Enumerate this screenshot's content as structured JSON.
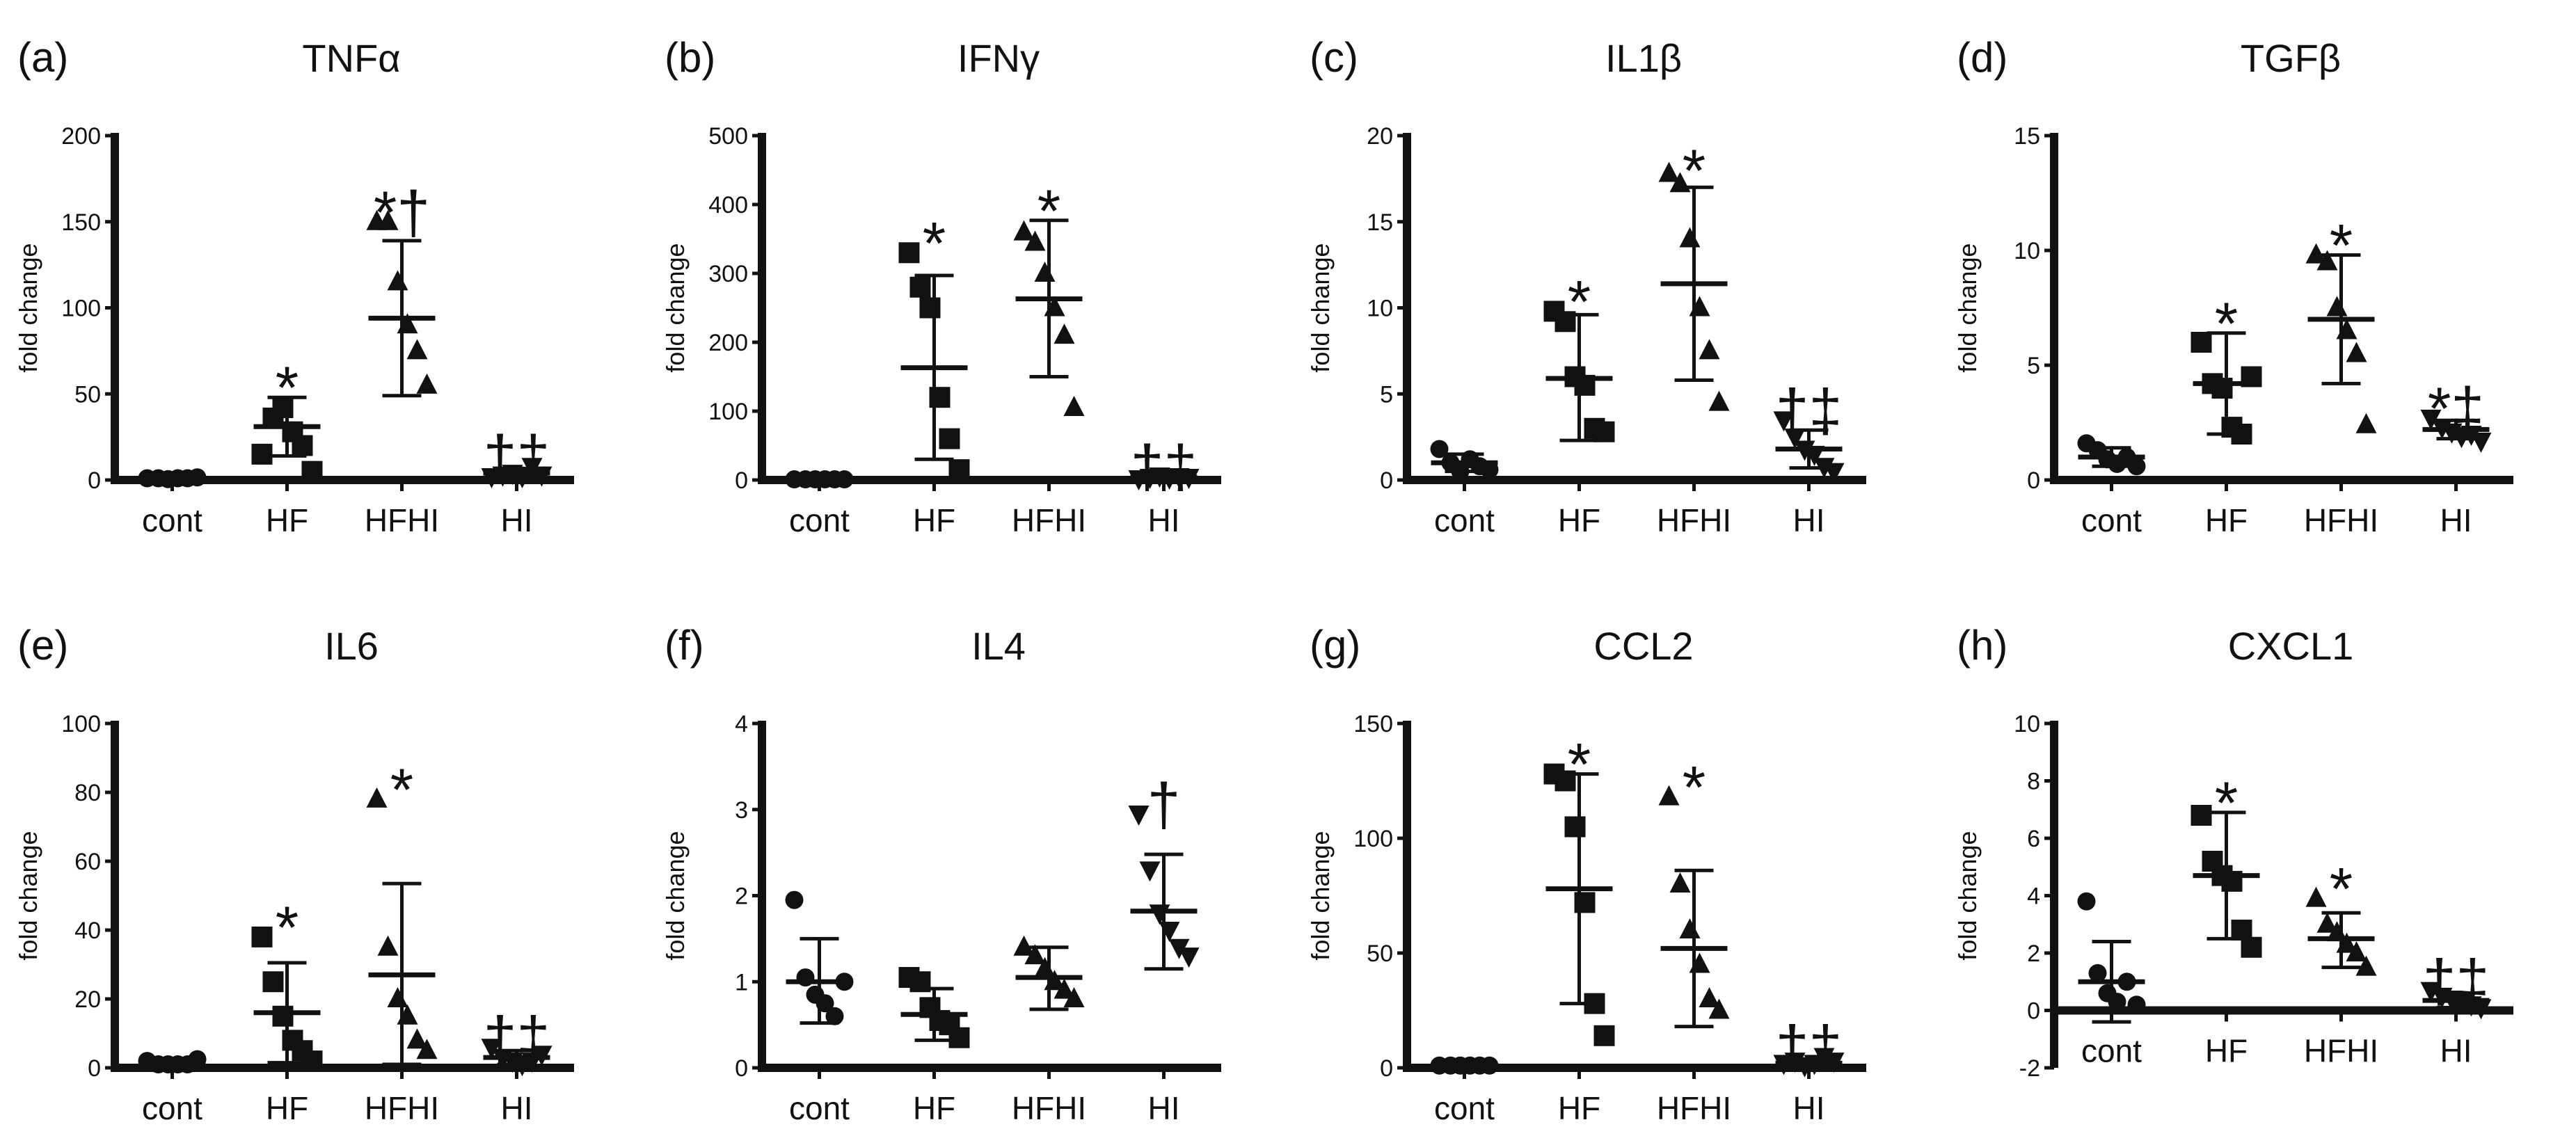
{
  "colors": {
    "ink": "#111111",
    "background": "#ffffff"
  },
  "y_axis_label": "fold change",
  "chart_data": [
    {
      "panel": "(a)",
      "type": "scatter",
      "title": "TNFα",
      "ylabel": "fold change",
      "categories": [
        "cont",
        "HF",
        "HFHI",
        "HI"
      ],
      "ylim": [
        0,
        200
      ],
      "yticks": [
        0,
        50,
        100,
        150,
        200
      ],
      "ytick_labels": [
        "0",
        "50",
        "100",
        "150",
        "200"
      ],
      "points": [
        [
          1,
          1,
          0.5,
          1,
          1,
          1.5
        ],
        [
          15,
          36,
          42,
          28,
          20,
          5
        ],
        [
          150,
          150,
          115,
          90,
          75,
          55
        ],
        [
          2,
          3,
          4,
          2,
          8,
          3
        ]
      ],
      "markers": [
        "circle",
        "square",
        "triangle-up",
        "triangle-down"
      ],
      "means": [
        1,
        31,
        94,
        4
      ],
      "sd_low": [
        1,
        14,
        49,
        2
      ],
      "sd_high": [
        1,
        48,
        139,
        6
      ],
      "annotations": [
        "",
        "*",
        "*†",
        "†‡"
      ]
    },
    {
      "panel": "(b)",
      "type": "scatter",
      "title": "IFNγ",
      "ylabel": "fold change",
      "categories": [
        "cont",
        "HF",
        "HFHI",
        "HI"
      ],
      "ylim": [
        0,
        500
      ],
      "yticks": [
        0,
        100,
        200,
        300,
        400,
        500
      ],
      "ytick_labels": [
        "0",
        "100",
        "200",
        "300",
        "400",
        "500"
      ],
      "points": [
        [
          1,
          1,
          1,
          1,
          1,
          1
        ],
        [
          330,
          280,
          250,
          120,
          60,
          15
        ],
        [
          360,
          345,
          300,
          250,
          210,
          105
        ],
        [
          2,
          4,
          6,
          3,
          5,
          4
        ]
      ],
      "markers": [
        "circle",
        "square",
        "triangle-up",
        "triangle-down"
      ],
      "means": [
        1,
        163,
        263,
        4
      ],
      "sd_low": [
        1,
        30,
        150,
        2
      ],
      "sd_high": [
        1,
        297,
        377,
        6
      ],
      "annotations": [
        "",
        "*",
        "*",
        "†‡"
      ]
    },
    {
      "panel": "(c)",
      "type": "scatter",
      "title": "IL1β",
      "ylabel": "fold change",
      "categories": [
        "cont",
        "HF",
        "HFHI",
        "HI"
      ],
      "ylim": [
        0,
        20
      ],
      "yticks": [
        0,
        5,
        10,
        15,
        20
      ],
      "ytick_labels": [
        "0",
        "5",
        "10",
        "15",
        "20"
      ],
      "points": [
        [
          1.8,
          1.0,
          0.5,
          1.2,
          0.8,
          0.6
        ],
        [
          9.8,
          9.2,
          6.0,
          5.5,
          3.0,
          2.8
        ],
        [
          17.8,
          17.2,
          14.0,
          10.0,
          7.5,
          4.5
        ],
        [
          3.5,
          2.5,
          1.8,
          1.5,
          0.8,
          0.5
        ]
      ],
      "markers": [
        "circle",
        "square",
        "triangle-up",
        "triangle-down"
      ],
      "means": [
        1.0,
        5.9,
        11.4,
        1.8
      ],
      "sd_low": [
        0.5,
        2.3,
        5.8,
        0.7
      ],
      "sd_high": [
        1.5,
        9.6,
        17.0,
        2.9
      ],
      "annotations": [
        "",
        "*",
        "*",
        "†‡"
      ]
    },
    {
      "panel": "(d)",
      "type": "scatter",
      "title": "TGFβ",
      "ylabel": "fold change",
      "categories": [
        "cont",
        "HF",
        "HFHI",
        "HI"
      ],
      "ylim": [
        0,
        15
      ],
      "yticks": [
        0,
        5,
        10,
        15
      ],
      "ytick_labels": [
        "0",
        "5",
        "10",
        "15"
      ],
      "points": [
        [
          1.6,
          1.3,
          0.9,
          0.7,
          1.0,
          0.6
        ],
        [
          6.0,
          4.2,
          4.0,
          2.3,
          2.0,
          4.5
        ],
        [
          9.8,
          9.5,
          7.5,
          6.5,
          5.5,
          2.4
        ],
        [
          2.7,
          2.3,
          2.1,
          1.9,
          2.0,
          1.7
        ]
      ],
      "markers": [
        "circle",
        "square",
        "triangle-up",
        "triangle-down"
      ],
      "means": [
        1.0,
        4.2,
        7.0,
        2.2
      ],
      "sd_low": [
        0.6,
        2.0,
        4.2,
        1.8
      ],
      "sd_high": [
        1.4,
        6.4,
        9.8,
        2.6
      ],
      "annotations": [
        "",
        "*",
        "*",
        "*‡"
      ]
    },
    {
      "panel": "(e)",
      "type": "scatter",
      "title": "IL6",
      "ylabel": "fold change",
      "categories": [
        "cont",
        "HF",
        "HFHI",
        "HI"
      ],
      "ylim": [
        0,
        100
      ],
      "yticks": [
        0,
        20,
        40,
        60,
        80,
        100
      ],
      "ytick_labels": [
        "0",
        "20",
        "40",
        "60",
        "80",
        "100"
      ],
      "points": [
        [
          2,
          1,
          1,
          1,
          1,
          2.5
        ],
        [
          38,
          25,
          15,
          8,
          5,
          2
        ],
        [
          78,
          35,
          20,
          15,
          8,
          5
        ],
        [
          6,
          3,
          2,
          1,
          2,
          4
        ]
      ],
      "markers": [
        "circle",
        "square",
        "triangle-up",
        "triangle-down"
      ],
      "means": [
        1.2,
        16,
        27,
        3
      ],
      "sd_low": [
        0.5,
        1.5,
        1.0,
        1.0
      ],
      "sd_high": [
        2,
        30.5,
        53.5,
        5
      ],
      "annotations": [
        "",
        "*",
        "*",
        "†‡"
      ]
    },
    {
      "panel": "(f)",
      "type": "scatter",
      "title": "IL4",
      "ylabel": "fold change",
      "categories": [
        "cont",
        "HF",
        "HFHI",
        "HI"
      ],
      "ylim": [
        0,
        4
      ],
      "yticks": [
        0,
        1,
        2,
        3,
        4
      ],
      "ytick_labels": [
        "0",
        "1",
        "2",
        "3",
        "4"
      ],
      "points": [
        [
          1.95,
          1.05,
          0.85,
          0.75,
          0.6,
          1.0
        ],
        [
          1.05,
          1.0,
          0.7,
          0.55,
          0.5,
          0.35
        ],
        [
          1.4,
          1.3,
          1.15,
          1.0,
          0.9,
          0.8
        ],
        [
          2.95,
          2.3,
          1.8,
          1.6,
          1.4,
          1.3
        ]
      ],
      "markers": [
        "circle",
        "square",
        "triangle-up",
        "triangle-down"
      ],
      "means": [
        1.0,
        0.62,
        1.05,
        1.82
      ],
      "sd_low": [
        0.52,
        0.32,
        0.68,
        1.15
      ],
      "sd_high": [
        1.5,
        0.92,
        1.4,
        2.48
      ],
      "annotations": [
        "",
        "",
        "",
        "†"
      ]
    },
    {
      "panel": "(g)",
      "type": "scatter",
      "title": "CCL2",
      "ylabel": "fold change",
      "categories": [
        "cont",
        "HF",
        "HFHI",
        "HI"
      ],
      "ylim": [
        0,
        150
      ],
      "yticks": [
        0,
        50,
        100,
        150
      ],
      "ytick_labels": [
        "0",
        "50",
        "100",
        "150"
      ],
      "points": [
        [
          1,
          1,
          1,
          1,
          1,
          1
        ],
        [
          128,
          125,
          105,
          72,
          28,
          14
        ],
        [
          118,
          80,
          60,
          45,
          30,
          25
        ],
        [
          2,
          3,
          1,
          2,
          5,
          3
        ]
      ],
      "markers": [
        "circle",
        "square",
        "triangle-up",
        "triangle-down"
      ],
      "means": [
        1,
        78,
        52,
        2
      ],
      "sd_low": [
        1,
        28,
        18,
        1
      ],
      "sd_high": [
        1,
        128,
        86,
        3
      ],
      "annotations": [
        "",
        "*",
        "*",
        "†‡"
      ]
    },
    {
      "panel": "(h)",
      "type": "scatter",
      "title": "CXCL1",
      "ylabel": "fold change",
      "categories": [
        "cont",
        "HF",
        "HFHI",
        "HI"
      ],
      "ylim": [
        -2,
        10
      ],
      "yticks": [
        -2,
        0,
        2,
        4,
        6,
        8,
        10
      ],
      "ytick_labels": [
        "-2",
        "0",
        "2",
        "4",
        "6",
        "8",
        "10"
      ],
      "points": [
        [
          3.8,
          1.3,
          0.6,
          0.3,
          1.0,
          0.2
        ],
        [
          6.8,
          5.2,
          4.7,
          4.5,
          2.8,
          2.2
        ],
        [
          3.9,
          3.0,
          2.7,
          2.3,
          2.0,
          1.5
        ],
        [
          0.7,
          0.5,
          0.4,
          0.3,
          0.2,
          0.1
        ]
      ],
      "markers": [
        "circle",
        "square",
        "triangle-up",
        "triangle-down"
      ],
      "means": [
        1.0,
        4.7,
        2.5,
        0.35
      ],
      "sd_low": [
        -0.4,
        2.5,
        1.5,
        0.1
      ],
      "sd_high": [
        2.4,
        6.9,
        3.4,
        0.6
      ],
      "annotations": [
        "",
        "*",
        "*",
        "†‡"
      ]
    }
  ]
}
